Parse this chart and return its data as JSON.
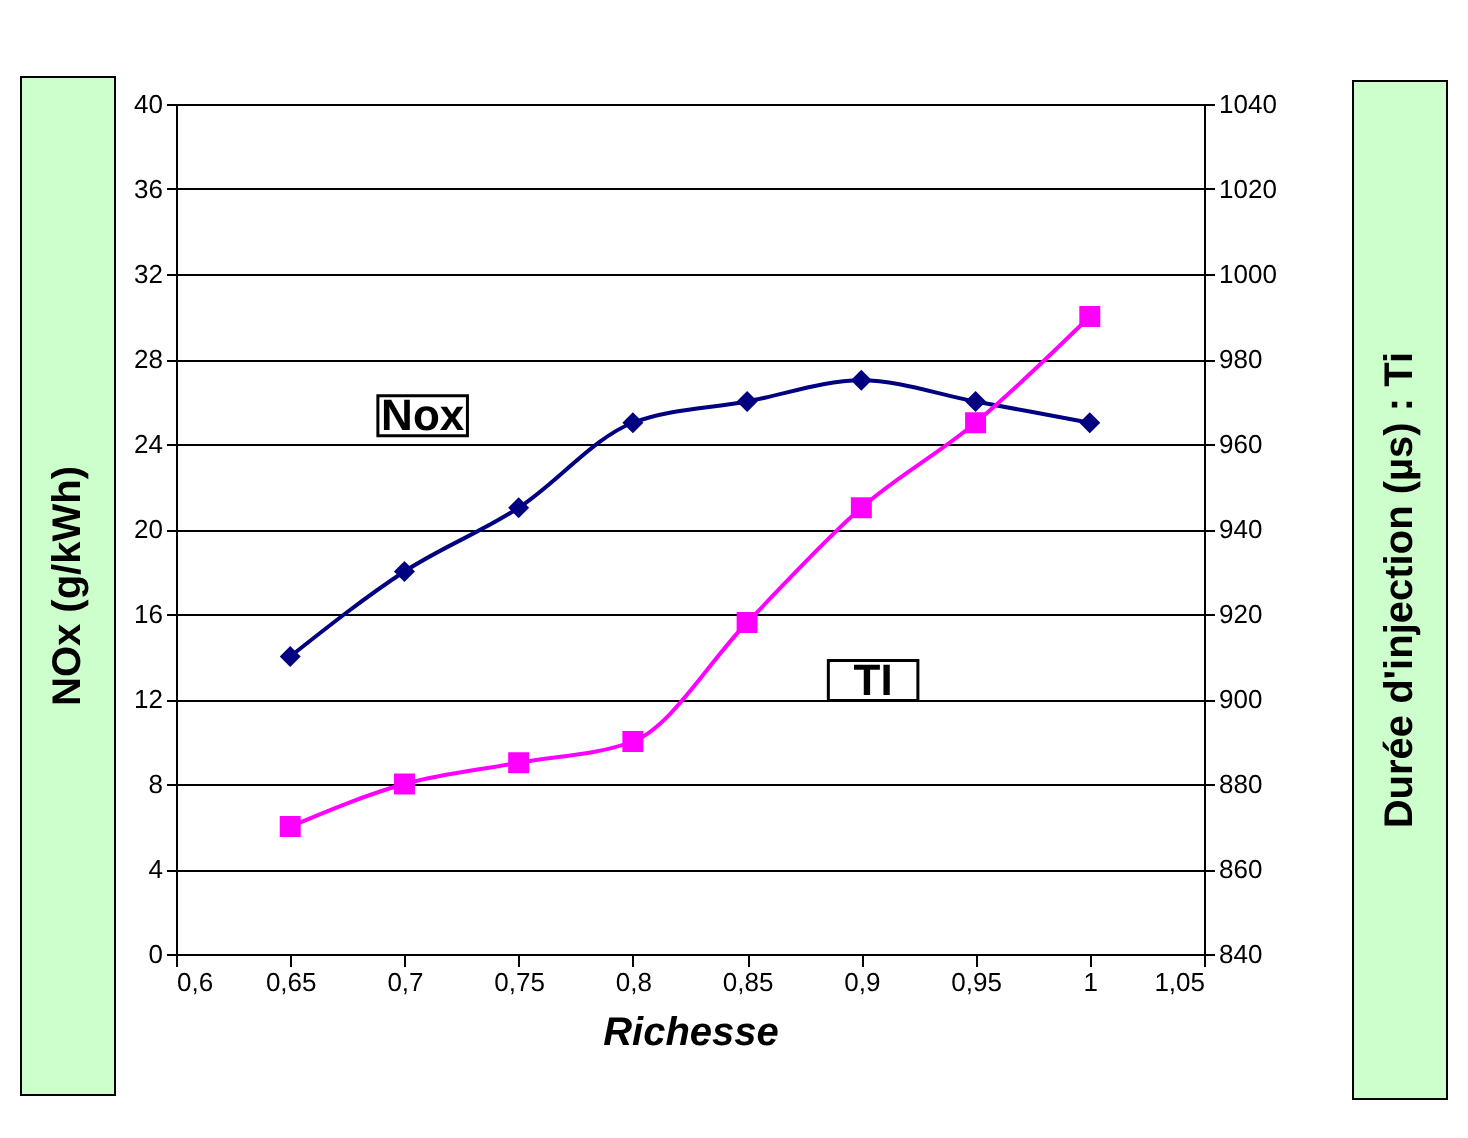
{
  "chart_data": {
    "type": "line",
    "xlabel": "Richesse",
    "ylabel": "NOx (g/kWh)",
    "y2label": "Durée d'injection (µs) : Ti",
    "x": [
      0.65,
      0.7,
      0.75,
      0.8,
      0.85,
      0.9,
      0.95,
      1
    ],
    "series": [
      {
        "name": "Nox",
        "color": "#000080",
        "marker": "diamond",
        "values": [
          14,
          18,
          21,
          25,
          26,
          27,
          26,
          25
        ]
      },
      {
        "name": "TI",
        "color": "#ff00ff",
        "marker": "square",
        "axis": "y2",
        "values": [
          870,
          880,
          885,
          890,
          918,
          945,
          965,
          990
        ]
      }
    ],
    "xlim": [
      0.6,
      1.05
    ],
    "xticks": [
      {
        "value": 0.6,
        "label": "0,6"
      },
      {
        "value": 0.65,
        "label": "0,65"
      },
      {
        "value": 0.7,
        "label": "0,7"
      },
      {
        "value": 0.75,
        "label": "0,75"
      },
      {
        "value": 0.8,
        "label": "0,8"
      },
      {
        "value": 0.85,
        "label": "0,85"
      },
      {
        "value": 0.9,
        "label": "0,9"
      },
      {
        "value": 0.95,
        "label": "0,95"
      },
      {
        "value": 1,
        "label": "1"
      },
      {
        "value": 1.05,
        "label": "1,05"
      }
    ],
    "ylim": [
      0,
      40
    ],
    "yticks": [
      0,
      4,
      8,
      12,
      16,
      20,
      24,
      28,
      32,
      36,
      40
    ],
    "y2lim": [
      840,
      1040
    ],
    "y2ticks": [
      840,
      860,
      880,
      900,
      920,
      940,
      960,
      980,
      1000,
      1020,
      1040
    ],
    "grid": "y"
  }
}
